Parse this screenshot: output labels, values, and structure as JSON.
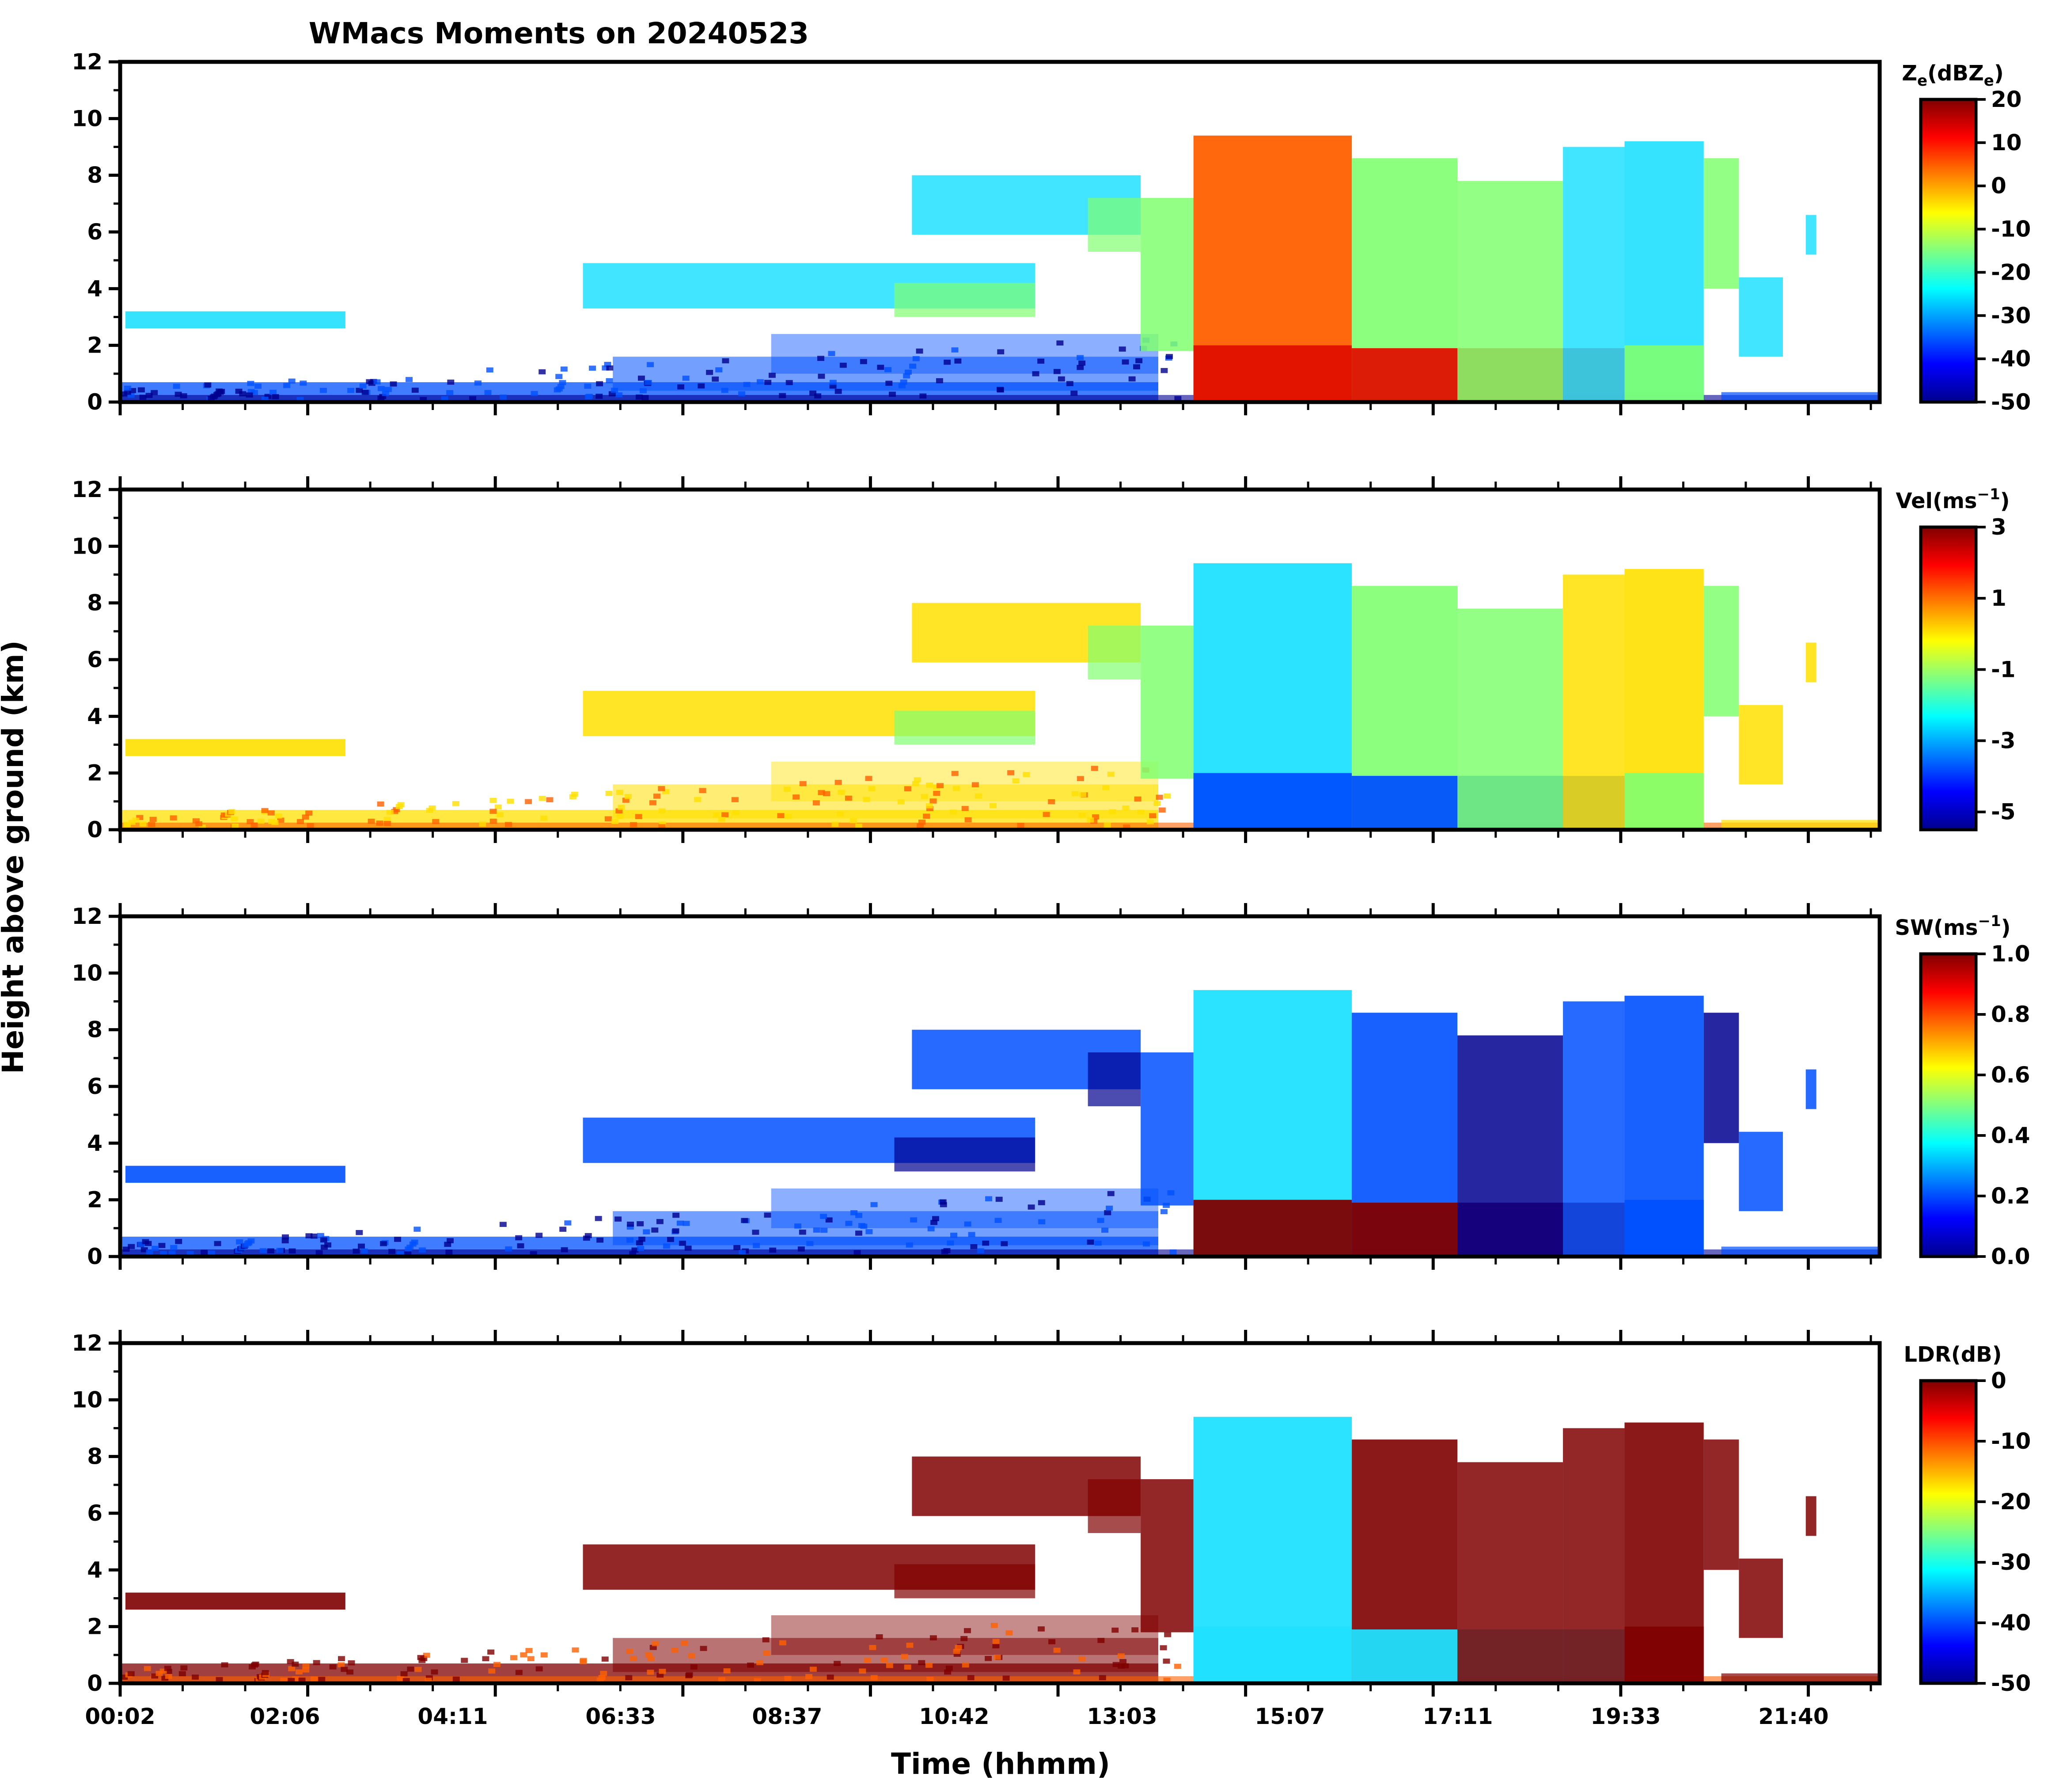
{
  "chart_data": {
    "type": "heatmap",
    "title": "WMacs Moments on 20240523",
    "xlabel": "Time (hhmm)",
    "ylabel": "Height above ground (km)",
    "x_ticks": [
      "00:02",
      "02:06",
      "04:11",
      "06:33",
      "08:37",
      "10:42",
      "13:03",
      "15:07",
      "17:11",
      "19:33",
      "21:40"
    ],
    "y_ticks": [
      "0",
      "2",
      "4",
      "6",
      "8",
      "10",
      "12"
    ],
    "ylim": [
      0,
      12
    ],
    "panels": [
      {
        "name": "reflectivity",
        "colorbar_label": "Ze(dBZe)",
        "colorbar_label_main": "Z",
        "colorbar_label_sub": "e",
        "colorbar_label_rest": "(dBZ",
        "colorbar_label_sub2": "e",
        "colorbar_label_end": ")",
        "vmin": -50,
        "vmax": 20,
        "colorbar_ticks": [
          "20",
          "10",
          "0",
          "-10",
          "-20",
          "-30",
          "-40",
          "-50"
        ]
      },
      {
        "name": "velocity",
        "colorbar_label": "Vel(ms-1)",
        "colorbar_label_main": "Vel(ms",
        "colorbar_label_sup": "−1",
        "colorbar_label_end": ")",
        "vmin": -5.5,
        "vmax": 3,
        "colorbar_ticks": [
          "3",
          "1",
          "-1",
          "-3",
          "-5"
        ]
      },
      {
        "name": "spectrum-width",
        "colorbar_label": "SW(ms-1)",
        "colorbar_label_main": "SW(ms",
        "colorbar_label_sup": "−1",
        "colorbar_label_end": ")",
        "vmin": 0,
        "vmax": 1,
        "colorbar_ticks": [
          "1.0",
          "0.8",
          "0.6",
          "0.4",
          "0.2",
          "0.0"
        ]
      },
      {
        "name": "ldr",
        "colorbar_label": "LDR(dB)",
        "colorbar_label_main": "LDR(dB)",
        "vmin": -50,
        "vmax": 0,
        "colorbar_ticks": [
          "0",
          "-10",
          "-20",
          "-30",
          "-40",
          "-50"
        ]
      }
    ]
  },
  "colors": {
    "jet_dark_blue": "#00008f",
    "jet_blue": "#0050ff",
    "jet_cyan": "#20e0ff",
    "jet_green": "#80ff70",
    "jet_yellow": "#ffe000",
    "jet_orange": "#ff6000",
    "jet_red": "#e01000",
    "jet_dark_red": "#800000"
  }
}
